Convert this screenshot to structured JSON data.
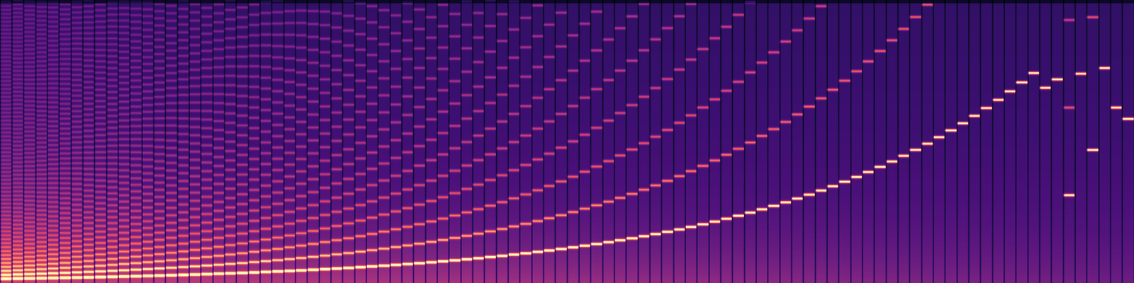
{
  "chart_data": {
    "type": "spectrogram",
    "color": "magma",
    "tick_labels": false,
    "ylim": [
      0,
      1
    ],
    "fundamentals": [
      0.014,
      0.0147,
      0.0153,
      0.016,
      0.0168,
      0.0176,
      0.0184,
      0.0192,
      0.0201,
      0.0211,
      0.0221,
      0.0231,
      0.0242,
      0.0253,
      0.0265,
      0.0277,
      0.029,
      0.0304,
      0.0318,
      0.0333,
      0.0348,
      0.0365,
      0.0382,
      0.0399,
      0.0418,
      0.0438,
      0.0458,
      0.048,
      0.0502,
      0.0525,
      0.055,
      0.0576,
      0.0603,
      0.0631,
      0.066,
      0.0691,
      0.0723,
      0.0757,
      0.0793,
      0.083,
      0.0868,
      0.0909,
      0.0951,
      0.0996,
      0.1042,
      0.1091,
      0.1142,
      0.1195,
      0.1251,
      0.131,
      0.1371,
      0.1435,
      0.1502,
      0.1572,
      0.1646,
      0.1723,
      0.1803,
      0.1887,
      0.1975,
      0.2068,
      0.2164,
      0.2265,
      0.2371,
      0.2482,
      0.2598,
      0.2719,
      0.2846,
      0.2979,
      0.3118,
      0.3264,
      0.3416,
      0.3576,
      0.3743,
      0.3918,
      0.4101,
      0.4292,
      0.4493,
      0.4703,
      0.4922,
      0.5152,
      0.5393,
      0.5645,
      0.5908,
      0.6184,
      0.6473,
      0.6776,
      0.7092,
      0.7423,
      0.69,
      0.72,
      0.31,
      0.74,
      0.47,
      0.76,
      0.62,
      0.58
    ]
  }
}
